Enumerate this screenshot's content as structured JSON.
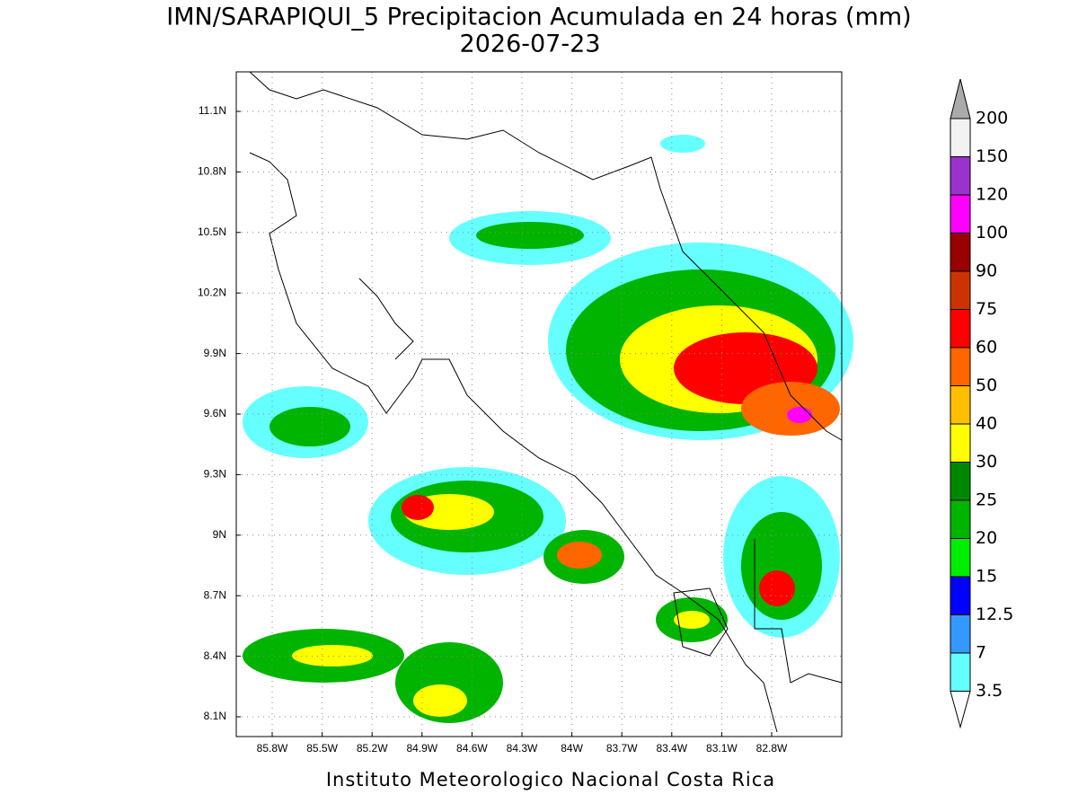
{
  "header": {
    "title": "IMN/SARAPIQUI_5 Precipitacion Acumulada en 24 horas (mm)",
    "date": "2026-07-23"
  },
  "map": {
    "xticks": [
      "85.8W",
      "85.5W",
      "85.2W",
      "84.9W",
      "84.6W",
      "84.3W",
      "84W",
      "83.7W",
      "83.4W",
      "83.1W",
      "82.8W"
    ],
    "yticks": [
      "11.1N",
      "10.8N",
      "10.5N",
      "10.2N",
      "9.9N",
      "9.6N",
      "9.3N",
      "9N",
      "8.7N",
      "8.4N",
      "8.1N"
    ]
  },
  "colorbar": {
    "over_color": "#aaaaaa",
    "levels": [
      {
        "label": 200,
        "color": "#f2f2f2"
      },
      {
        "label": 150,
        "color": "#9933cc"
      },
      {
        "label": 120,
        "color": "#ff00ff"
      },
      {
        "label": 100,
        "color": "#990000"
      },
      {
        "label": 90,
        "color": "#cc3300"
      },
      {
        "label": 75,
        "color": "#ff0000"
      },
      {
        "label": 60,
        "color": "#ff6600"
      },
      {
        "label": 50,
        "color": "#ffbf00"
      },
      {
        "label": 40,
        "color": "#ffff00"
      },
      {
        "label": 30,
        "color": "#008800"
      },
      {
        "label": 25,
        "color": "#00b400"
      },
      {
        "label": 20,
        "color": "#00ee00"
      },
      {
        "label": 15,
        "color": "#0000ff"
      },
      {
        "label": 12.5,
        "color": "#3399ff"
      },
      {
        "label": 7,
        "color": "#66ffff"
      },
      {
        "label": 3.5,
        "color": "#ffffff"
      }
    ]
  },
  "footer": "Instituto Meteorologico Nacional Costa Rica"
}
